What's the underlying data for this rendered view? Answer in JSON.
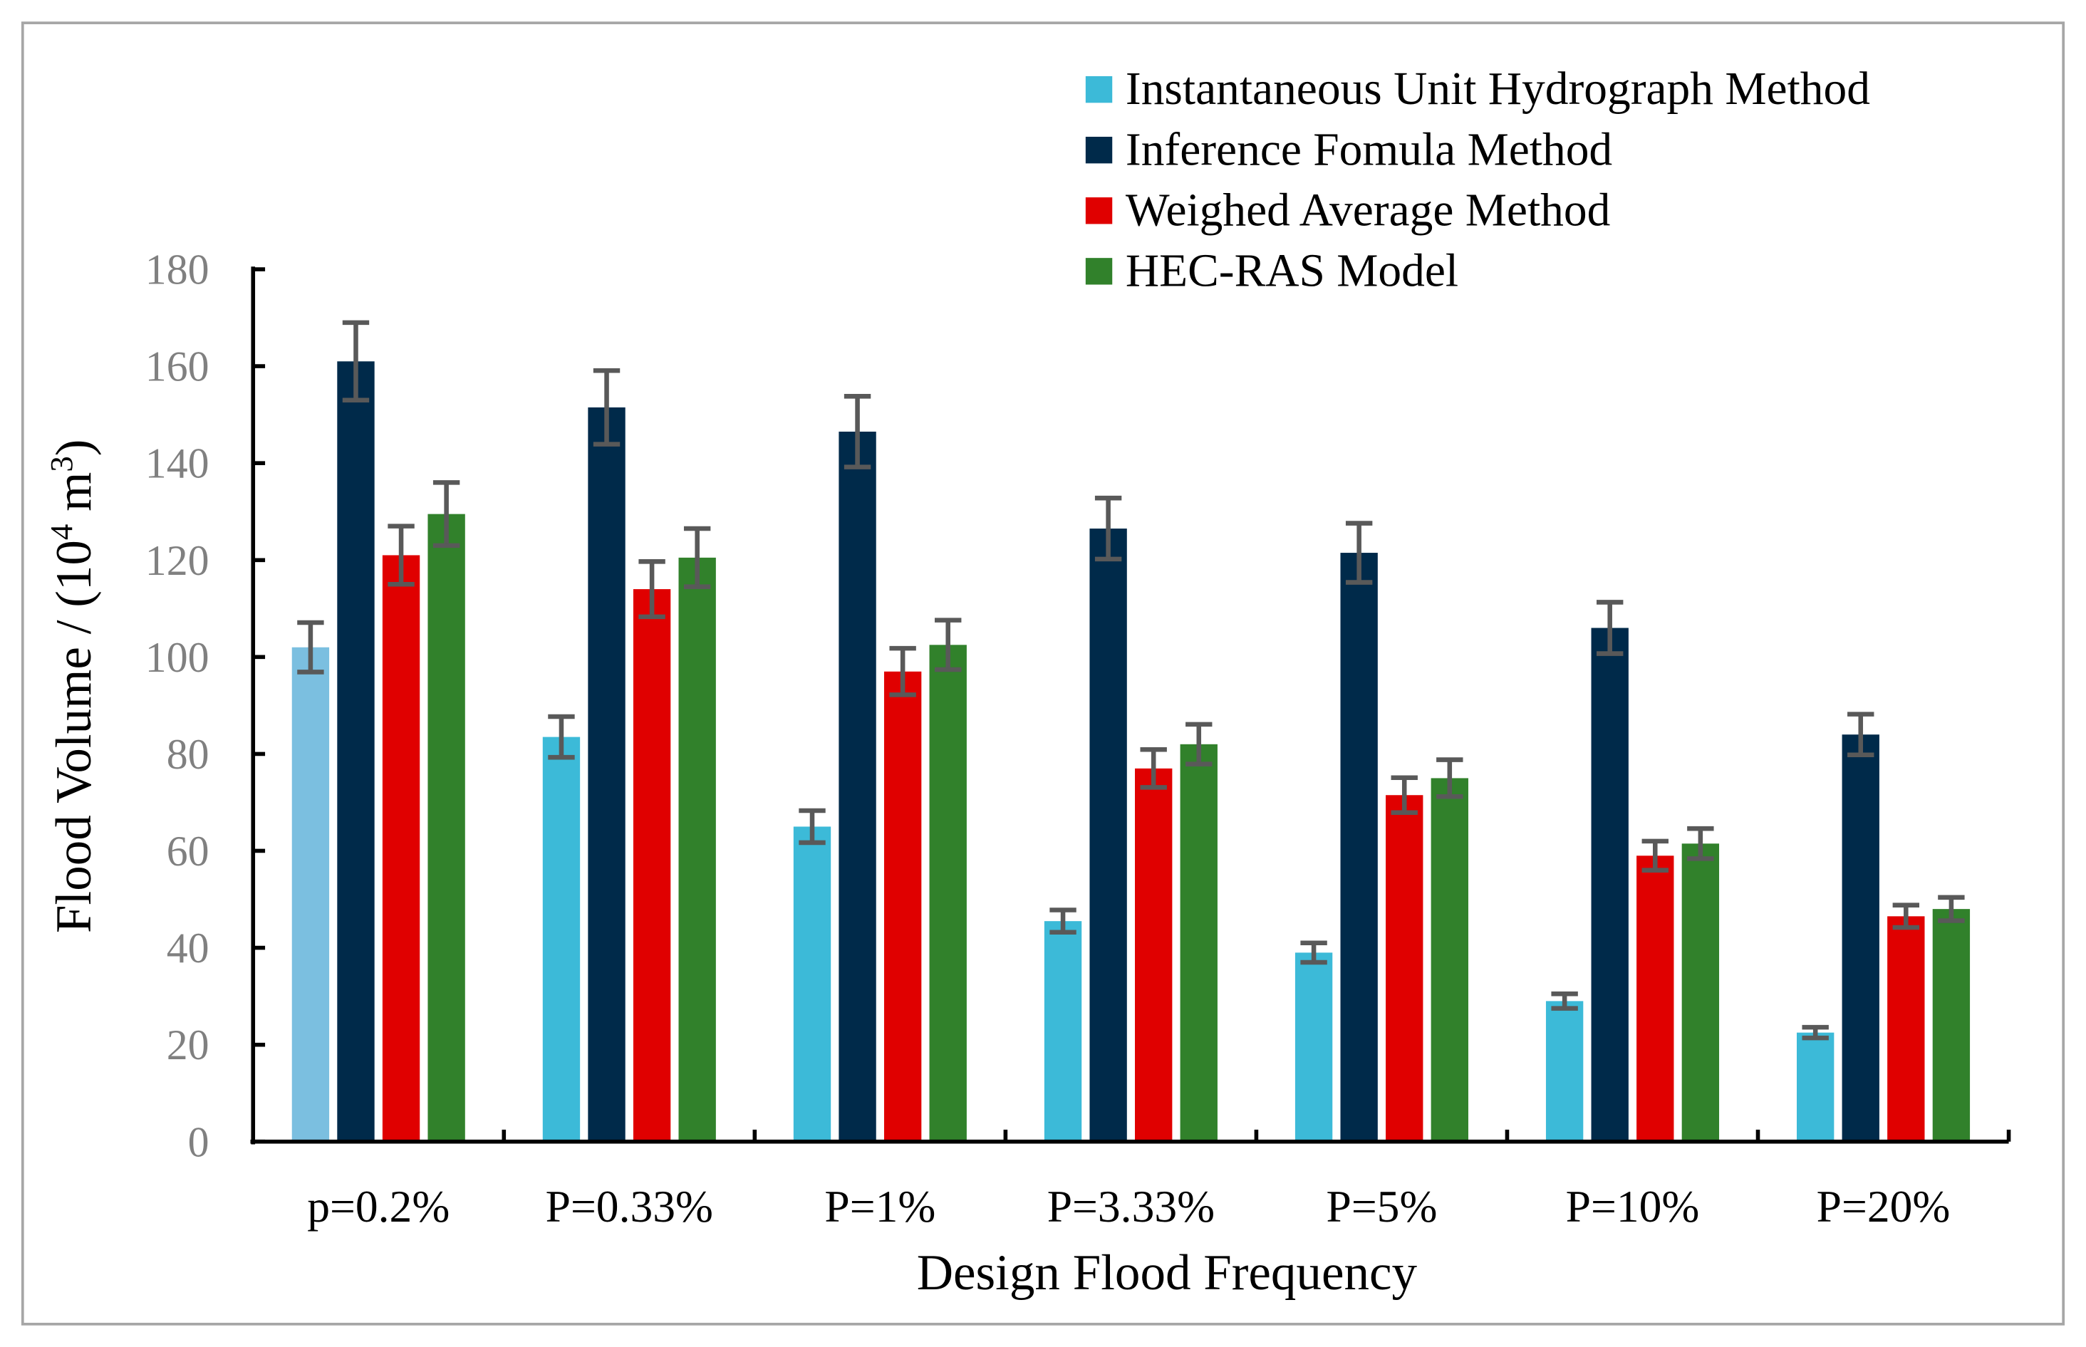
{
  "chart_data": {
    "type": "bar",
    "title": "",
    "xlabel": "Design Flood Frequency",
    "ylabel_main": "Flood Volume / (10",
    "ylabel_sup1": "4",
    "ylabel_mid": " m",
    "ylabel_sup2": "3",
    "ylabel_end": ")",
    "ylim": [
      0,
      180
    ],
    "yticks": [
      0,
      20,
      40,
      60,
      80,
      100,
      120,
      140,
      160,
      180
    ],
    "grid": false,
    "legend_position": "top-right",
    "categories": [
      "p=0.2%",
      "P=0.33%",
      "P=1%",
      "P=3.33%",
      "P=5%",
      "P=10%",
      "P=20%"
    ],
    "series": [
      {
        "name": "Instantaneous Unit Hydrograph Method",
        "color": "#3CBAD8",
        "first_bar_color": "#7BBFE0",
        "values": [
          102,
          83.5,
          65,
          45.5,
          39,
          29,
          22.5
        ],
        "errors": [
          5.1,
          4.2,
          3.3,
          2.3,
          2,
          1.5,
          1.1
        ]
      },
      {
        "name": "Inference Fomula Method",
        "color": "#002A4A",
        "values": [
          161,
          151.5,
          146.5,
          126.5,
          121.5,
          106,
          84
        ],
        "errors": [
          8,
          7.6,
          7.3,
          6.3,
          6.1,
          5.3,
          4.2
        ]
      },
      {
        "name": "Weighed Average Method",
        "color": "#E00000",
        "values": [
          121,
          114,
          97,
          77,
          71.5,
          59,
          46.5
        ],
        "errors": [
          6,
          5.7,
          4.8,
          3.9,
          3.6,
          3,
          2.3
        ]
      },
      {
        "name": "HEC-RAS Model",
        "color": "#31812B",
        "values": [
          129.5,
          120.5,
          102.5,
          82,
          75,
          61.5,
          48
        ],
        "errors": [
          6.5,
          6,
          5.1,
          4.1,
          3.8,
          3.1,
          2.4
        ]
      }
    ],
    "error_bar_color": "#595959",
    "axis_tick_label_color": "#808080"
  }
}
